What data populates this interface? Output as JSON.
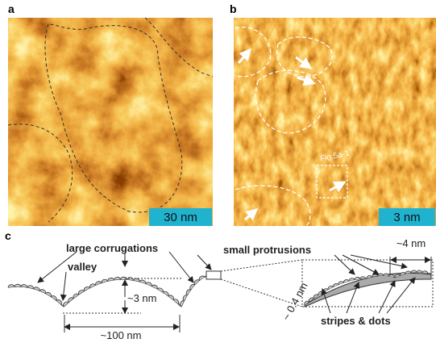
{
  "panels": {
    "a": {
      "label": "a",
      "scale_bar": "30 nm"
    },
    "b": {
      "label": "b",
      "scale_bar": "3 nm",
      "inset_label": "Fig.5a-1"
    },
    "c": {
      "label": "c",
      "annotations": {
        "large_corrugations": "large corrugations",
        "valley": "valley",
        "height": "~3 nm",
        "width": "~100 nm",
        "small_protrusions": "small protrusions",
        "period": "~4 nm",
        "thickness": "~ 0.4 nm",
        "stripes_dots": "stripes & dots"
      }
    }
  }
}
